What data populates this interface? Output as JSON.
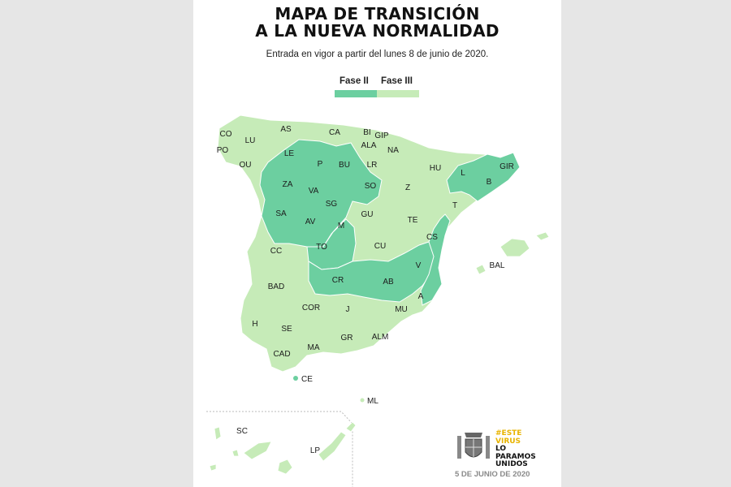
{
  "title": {
    "line1": "MAPA DE TRANSICIÓN",
    "line2": "A LA NUEVA NORMALIDAD"
  },
  "subtitle": "Entrada en vigor a partir del lunes 8 de junio de 2020.",
  "legend": [
    {
      "label": "Fase II",
      "color": "#6ccfa0"
    },
    {
      "label": "Fase III",
      "color": "#c6ebb8"
    }
  ],
  "colors": {
    "fase2": "#6ccfa0",
    "fase3": "#c6ebb8",
    "border": "#ffffff",
    "background": "#e6e6e6"
  },
  "provinces": [
    {
      "code": "CO",
      "phase": 3
    },
    {
      "code": "LU",
      "phase": 3
    },
    {
      "code": "AS",
      "phase": 3
    },
    {
      "code": "CA",
      "phase": 3
    },
    {
      "code": "BI",
      "phase": 3
    },
    {
      "code": "GIP",
      "phase": 3
    },
    {
      "code": "PO",
      "phase": 3
    },
    {
      "code": "OU",
      "phase": 3
    },
    {
      "code": "LE",
      "phase": 2
    },
    {
      "code": "P",
      "phase": 2
    },
    {
      "code": "BU",
      "phase": 2
    },
    {
      "code": "ALA",
      "phase": 3
    },
    {
      "code": "NA",
      "phase": 3
    },
    {
      "code": "LR",
      "phase": 3
    },
    {
      "code": "HU",
      "phase": 3
    },
    {
      "code": "L",
      "phase": 2
    },
    {
      "code": "GIR",
      "phase": 2
    },
    {
      "code": "B",
      "phase": 2
    },
    {
      "code": "ZA",
      "phase": 2
    },
    {
      "code": "VA",
      "phase": 2
    },
    {
      "code": "SO",
      "phase": 2
    },
    {
      "code": "Z",
      "phase": 3
    },
    {
      "code": "T",
      "phase": 3
    },
    {
      "code": "SG",
      "phase": 2
    },
    {
      "code": "SA",
      "phase": 2
    },
    {
      "code": "AV",
      "phase": 2
    },
    {
      "code": "GU",
      "phase": 3
    },
    {
      "code": "M",
      "phase": 2
    },
    {
      "code": "TE",
      "phase": 3
    },
    {
      "code": "CS",
      "phase": 2
    },
    {
      "code": "CC",
      "phase": 3
    },
    {
      "code": "TO",
      "phase": 2
    },
    {
      "code": "CU",
      "phase": 3
    },
    {
      "code": "V",
      "phase": 2
    },
    {
      "code": "BAD",
      "phase": 3
    },
    {
      "code": "CR",
      "phase": 2
    },
    {
      "code": "AB",
      "phase": 2
    },
    {
      "code": "A",
      "phase": 2
    },
    {
      "code": "COR",
      "phase": 3
    },
    {
      "code": "J",
      "phase": 3
    },
    {
      "code": "MU",
      "phase": 3
    },
    {
      "code": "H",
      "phase": 3
    },
    {
      "code": "SE",
      "phase": 3
    },
    {
      "code": "GR",
      "phase": 3
    },
    {
      "code": "ALM",
      "phase": 3
    },
    {
      "code": "CAD",
      "phase": 3
    },
    {
      "code": "MA",
      "phase": 3
    },
    {
      "code": "BAL",
      "phase": 3
    },
    {
      "code": "CE",
      "phase": 2
    },
    {
      "code": "ML",
      "phase": 3
    },
    {
      "code": "SC",
      "phase": 3
    },
    {
      "code": "LP",
      "phase": 3
    }
  ],
  "footer": {
    "hashtag_line1": "#ESTE",
    "hashtag_line2": "VIRUS",
    "hashtag_line3": "LO",
    "hashtag_line4": "PARAMOS",
    "hashtag_line5": "UNIDOS",
    "date": "5 DE JUNIO DE 2020",
    "emblem_icon": "spain-coat-of-arms-icon"
  }
}
